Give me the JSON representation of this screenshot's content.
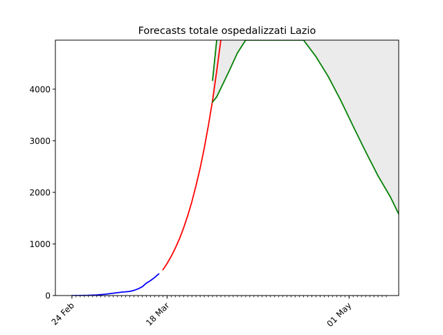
{
  "chart_data": {
    "type": "line",
    "title": "Forecasts totale ospedalizzati Lazio",
    "xlabel": "",
    "ylabel": "",
    "x_axis": {
      "type": "date",
      "range": [
        "2020-02-20",
        "2020-05-13"
      ],
      "tick_labels": [
        {
          "date": "2020-02-24",
          "label": "24 Feb"
        },
        {
          "date": "2020-03-18",
          "label": "18 Mar"
        },
        {
          "date": "2020-05-01",
          "label": "01 May"
        }
      ],
      "minor_ticks": {
        "start": "2020-02-24",
        "end": "2020-05-10",
        "step_days": 1
      }
    },
    "y_axis": {
      "range": [
        0,
        4950
      ],
      "ticks": [
        0,
        1000,
        2000,
        3000,
        4000
      ]
    },
    "grid": false,
    "legend": "none",
    "series": [
      {
        "role": "observed",
        "color": "#0000ff",
        "points": [
          [
            "2020-02-24",
            0
          ],
          [
            "2020-02-26",
            2
          ],
          [
            "2020-02-28",
            4
          ],
          [
            "2020-03-01",
            12
          ],
          [
            "2020-03-03",
            25
          ],
          [
            "2020-03-05",
            45
          ],
          [
            "2020-03-07",
            65
          ],
          [
            "2020-03-09",
            80
          ],
          [
            "2020-03-10",
            100
          ],
          [
            "2020-03-11",
            130
          ],
          [
            "2020-03-12",
            170
          ],
          [
            "2020-03-13",
            240
          ],
          [
            "2020-03-14",
            290
          ],
          [
            "2020-03-15",
            350
          ],
          [
            "2020-03-16",
            420
          ]
        ]
      },
      {
        "role": "forecast",
        "color": "#ff0000",
        "points": [
          [
            "2020-03-17",
            500
          ],
          [
            "2020-03-18",
            620
          ],
          [
            "2020-03-19",
            760
          ],
          [
            "2020-03-20",
            920
          ],
          [
            "2020-03-21",
            1100
          ],
          [
            "2020-03-22",
            1310
          ],
          [
            "2020-03-23",
            1550
          ],
          [
            "2020-03-24",
            1820
          ],
          [
            "2020-03-25",
            2130
          ],
          [
            "2020-03-26",
            2470
          ],
          [
            "2020-03-27",
            2860
          ],
          [
            "2020-03-28",
            3300
          ],
          [
            "2020-03-29",
            3780
          ],
          [
            "2020-03-30",
            4350
          ],
          [
            "2020-03-31",
            4950
          ]
        ]
      },
      {
        "role": "forecast",
        "color": "#008000",
        "points": [
          [
            "2020-03-29",
            4170
          ],
          [
            "2020-03-30",
            4950
          ]
        ]
      },
      {
        "role": "forecast",
        "color": "#008000",
        "points": [
          [
            "2020-03-29",
            3750
          ],
          [
            "2020-03-30",
            3850
          ],
          [
            "2020-04-02",
            4350
          ],
          [
            "2020-04-04",
            4700
          ],
          [
            "2020-04-06",
            4950
          ],
          [
            "2020-04-20",
            4950
          ],
          [
            "2020-04-23",
            4630
          ],
          [
            "2020-04-26",
            4240
          ],
          [
            "2020-04-29",
            3780
          ],
          [
            "2020-05-02",
            3280
          ],
          [
            "2020-05-05",
            2790
          ],
          [
            "2020-05-08",
            2320
          ],
          [
            "2020-05-11",
            1910
          ],
          [
            "2020-05-13",
            1580
          ]
        ]
      }
    ],
    "band": {
      "color": "#ebebeb",
      "upper": [
        [
          "2020-03-29",
          4170
        ],
        [
          "2020-03-30",
          4950
        ],
        [
          "2020-05-13",
          4950
        ]
      ],
      "lower": [
        [
          "2020-03-29",
          3750
        ],
        [
          "2020-03-30",
          3850
        ],
        [
          "2020-04-02",
          4350
        ],
        [
          "2020-04-04",
          4700
        ],
        [
          "2020-04-06",
          4950
        ],
        [
          "2020-04-20",
          4950
        ],
        [
          "2020-04-23",
          4630
        ],
        [
          "2020-04-26",
          4240
        ],
        [
          "2020-04-29",
          3780
        ],
        [
          "2020-05-02",
          3280
        ],
        [
          "2020-05-05",
          2790
        ],
        [
          "2020-05-08",
          2320
        ],
        [
          "2020-05-11",
          1910
        ],
        [
          "2020-05-13",
          1580
        ]
      ]
    }
  }
}
